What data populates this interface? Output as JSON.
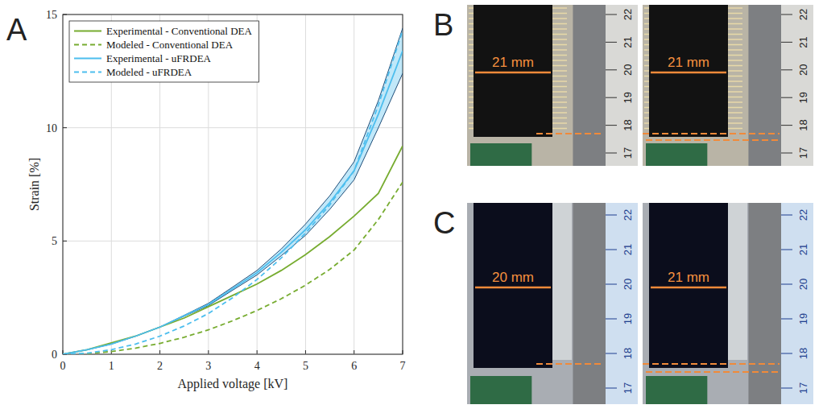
{
  "chart_data": {
    "type": "line",
    "x_label": "Applied voltage [kV]",
    "y_label": "Strain [%]",
    "x": [
      0,
      0.5,
      1,
      1.5,
      2,
      2.5,
      3,
      3.5,
      4,
      4.5,
      5,
      5.5,
      6,
      6.5,
      7
    ],
    "series": [
      {
        "name": "Experimental - Conventional DEA",
        "color": "#77ac30",
        "line_style": "solid",
        "values": [
          0,
          0.2,
          0.5,
          0.8,
          1.2,
          1.6,
          2.1,
          2.6,
          3.1,
          3.7,
          4.4,
          5.2,
          6.1,
          7.1,
          9.2
        ]
      },
      {
        "name": "Modeled - Conventional DEA",
        "color": "#77ac30",
        "line_style": "dashed",
        "values": [
          0,
          0.03,
          0.12,
          0.27,
          0.48,
          0.75,
          1.08,
          1.48,
          1.93,
          2.45,
          3.05,
          3.75,
          4.6,
          5.95,
          7.6
        ]
      },
      {
        "name": "Experimental - uFRDEA",
        "color": "#4dbeee",
        "line_style": "solid",
        "values": [
          0,
          0.2,
          0.45,
          0.8,
          1.2,
          1.7,
          2.2,
          2.9,
          3.6,
          4.5,
          5.5,
          6.7,
          8.1,
          10.6,
          13.4
        ],
        "upper": [
          0,
          0.2,
          0.45,
          0.8,
          1.2,
          1.72,
          2.25,
          2.97,
          3.7,
          4.65,
          5.75,
          7.0,
          8.5,
          11.2,
          14.4
        ],
        "lower": [
          0,
          0.2,
          0.45,
          0.8,
          1.2,
          1.68,
          2.15,
          2.83,
          3.5,
          4.35,
          5.25,
          6.4,
          7.7,
          10.0,
          12.4
        ]
      },
      {
        "name": "Modeled - uFRDEA",
        "color": "#4dbeee",
        "line_style": "dashed",
        "values": [
          0,
          0.05,
          0.2,
          0.45,
          0.8,
          1.25,
          1.8,
          2.5,
          3.3,
          4.25,
          5.35,
          6.6,
          8.1,
          11.0,
          14.3
        ]
      }
    ],
    "xlim": [
      0,
      7
    ],
    "xticks": [
      0,
      1,
      2,
      3,
      4,
      5,
      6,
      7
    ],
    "ylim": [
      0,
      15
    ],
    "yticks": [
      0,
      5,
      10,
      15
    ],
    "grid": true,
    "legend": "upper left"
  },
  "figure": {
    "panel_letter": "A",
    "rows": [
      {
        "letter": "B",
        "labels": [
          "21 mm",
          "21 mm"
        ],
        "ruler": [
          22,
          21,
          20,
          19,
          18,
          17
        ]
      },
      {
        "letter": "C",
        "labels": [
          "20 mm",
          "21 mm"
        ],
        "ruler": [
          22,
          21,
          20,
          19,
          18,
          17
        ]
      }
    ]
  }
}
